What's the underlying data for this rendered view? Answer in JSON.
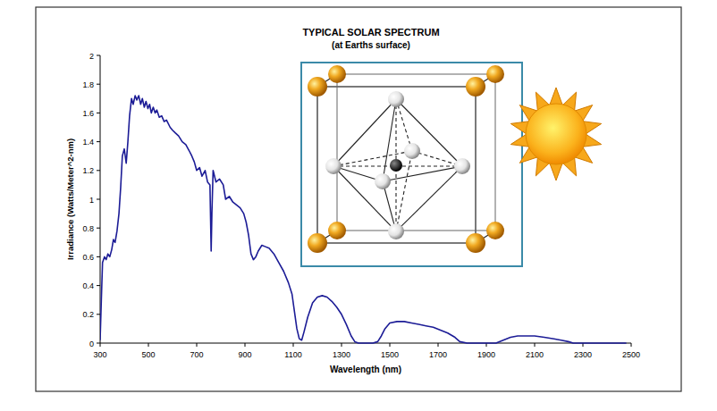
{
  "chart_data": {
    "type": "line",
    "title": "TYPICAL SOLAR SPECTRUM",
    "subtitle": "(at Earths surface)",
    "x_label": "Wavelength (nm)",
    "y_label": "Irradiance (Watts/Meter^2-nm)",
    "color": "#1c1c96",
    "grid": false,
    "xlim": [
      300,
      2500
    ],
    "xticks": [
      300,
      500,
      700,
      900,
      1100,
      1300,
      1500,
      1700,
      1900,
      2100,
      2300,
      2500
    ],
    "ylim": [
      0,
      2
    ],
    "yticks": [
      0,
      0.2,
      0.4,
      0.6,
      0.8,
      1,
      1.2,
      1.4,
      1.6,
      1.8,
      2
    ],
    "x": [
      300,
      305,
      310,
      318,
      325,
      332,
      340,
      348,
      355,
      362,
      370,
      378,
      385,
      392,
      400,
      408,
      415,
      422,
      430,
      437,
      445,
      452,
      460,
      468,
      475,
      483,
      490,
      498,
      505,
      512,
      520,
      528,
      535,
      545,
      555,
      565,
      575,
      590,
      600,
      612,
      625,
      640,
      655,
      668,
      680,
      690,
      700,
      712,
      722,
      735,
      745,
      755,
      760,
      763,
      768,
      780,
      795,
      810,
      820,
      835,
      850,
      865,
      880,
      895,
      905,
      915,
      925,
      935,
      945,
      955,
      970,
      985,
      1000,
      1020,
      1040,
      1060,
      1080,
      1095,
      1105,
      1115,
      1125,
      1135,
      1145,
      1160,
      1180,
      1200,
      1220,
      1240,
      1260,
      1280,
      1300,
      1320,
      1340,
      1355,
      1370,
      1400,
      1430,
      1450,
      1465,
      1480,
      1500,
      1530,
      1560,
      1590,
      1620,
      1650,
      1680,
      1710,
      1740,
      1770,
      1790,
      1820,
      1880,
      1940,
      1970,
      2000,
      2030,
      2060,
      2100,
      2140,
      2180,
      2210,
      2240,
      2260,
      2300,
      2400,
      2480
    ],
    "values": [
      0.02,
      0.3,
      0.56,
      0.6,
      0.58,
      0.62,
      0.6,
      0.65,
      0.72,
      0.7,
      0.78,
      0.9,
      1.08,
      1.3,
      1.35,
      1.25,
      1.4,
      1.58,
      1.7,
      1.66,
      1.72,
      1.69,
      1.72,
      1.66,
      1.7,
      1.64,
      1.68,
      1.63,
      1.66,
      1.6,
      1.64,
      1.6,
      1.62,
      1.57,
      1.58,
      1.54,
      1.55,
      1.5,
      1.48,
      1.46,
      1.44,
      1.4,
      1.38,
      1.34,
      1.3,
      1.26,
      1.2,
      1.22,
      1.16,
      1.2,
      1.12,
      1.1,
      0.64,
      0.9,
      1.2,
      1.12,
      1.14,
      1.1,
      1.0,
      1.02,
      0.98,
      0.96,
      0.94,
      0.9,
      0.84,
      0.75,
      0.62,
      0.58,
      0.6,
      0.64,
      0.68,
      0.67,
      0.66,
      0.62,
      0.56,
      0.5,
      0.42,
      0.34,
      0.22,
      0.1,
      0.03,
      0.02,
      0.08,
      0.18,
      0.28,
      0.32,
      0.33,
      0.32,
      0.29,
      0.25,
      0.2,
      0.13,
      0.05,
      0.01,
      0.0,
      0.0,
      0.0,
      0.01,
      0.05,
      0.1,
      0.14,
      0.15,
      0.15,
      0.14,
      0.13,
      0.12,
      0.11,
      0.09,
      0.07,
      0.04,
      0.01,
      0.0,
      0.0,
      0.0,
      0.02,
      0.04,
      0.05,
      0.05,
      0.05,
      0.04,
      0.03,
      0.02,
      0.01,
      0.0,
      0.0,
      0.0,
      0.0
    ]
  }
}
